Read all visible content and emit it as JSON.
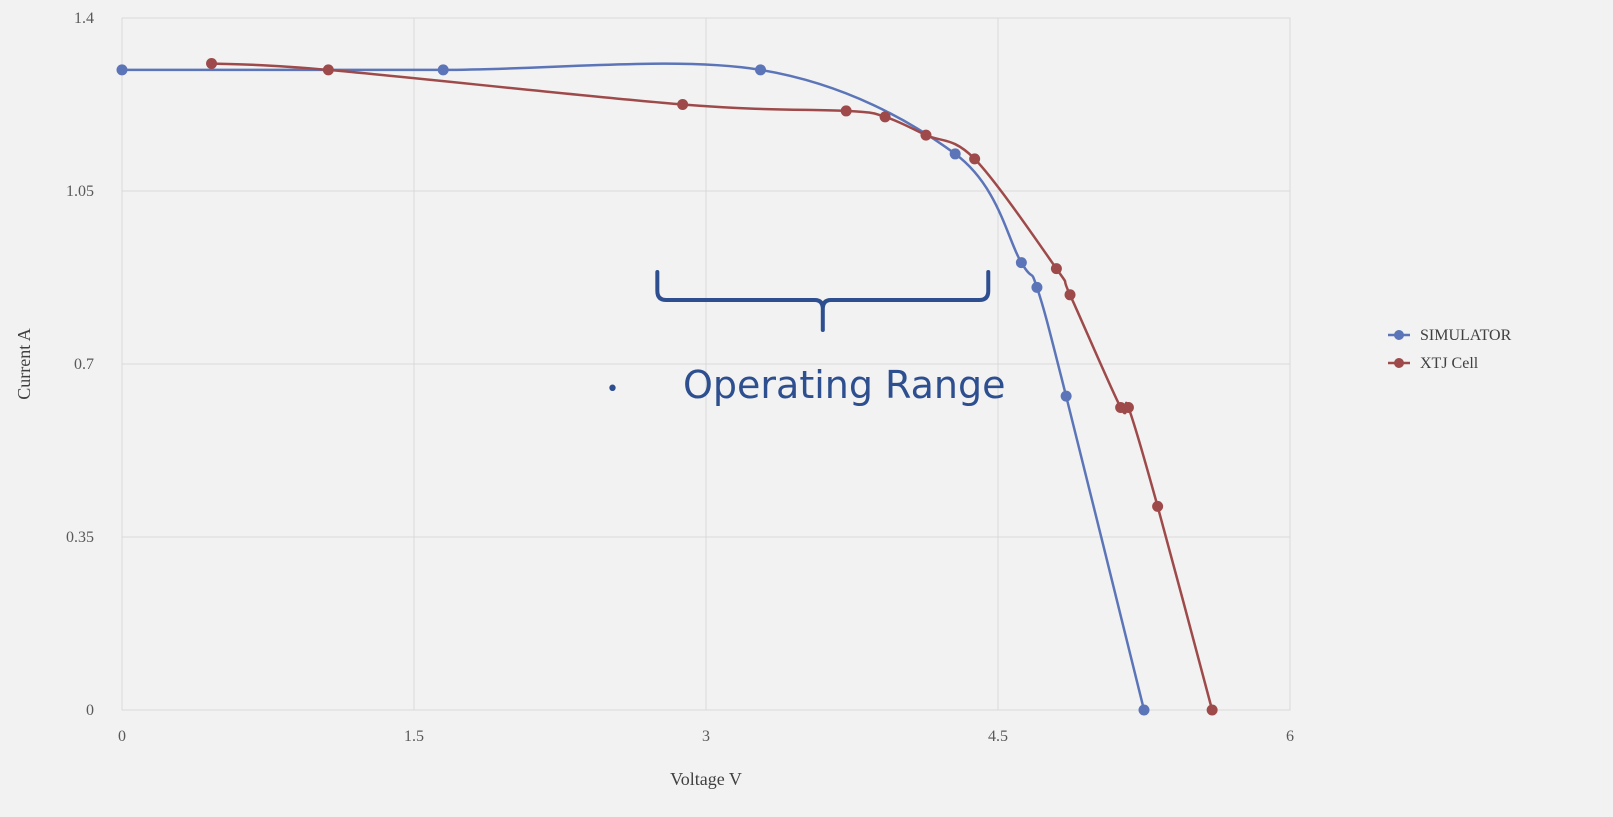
{
  "chart_data": {
    "type": "scatter",
    "xlabel": "Voltage V",
    "ylabel": "Current A",
    "xlim": [
      0,
      6
    ],
    "ylim": [
      0,
      1.4
    ],
    "x_ticks": [
      "0",
      "1.5",
      "3",
      "4.5",
      "6"
    ],
    "y_ticks": [
      "0",
      "0.35",
      "0.7",
      "1.05",
      "1.4"
    ],
    "grid": true,
    "legend_position": "right",
    "smoothed_lines": true,
    "series": [
      {
        "name": "SIMULATOR",
        "color": "#5b75b8",
        "points": [
          [
            0,
            1.295
          ],
          [
            1.65,
            1.295
          ],
          [
            3.28,
            1.295
          ],
          [
            4.28,
            1.125
          ],
          [
            4.62,
            0.905
          ],
          [
            4.7,
            0.855
          ],
          [
            4.85,
            0.635
          ],
          [
            5.25,
            0.0
          ]
        ]
      },
      {
        "name": "XTJ Cell",
        "color": "#9e4a4a",
        "points": [
          [
            0.46,
            1.308
          ],
          [
            1.06,
            1.295
          ],
          [
            2.88,
            1.225
          ],
          [
            3.72,
            1.212
          ],
          [
            3.92,
            1.2
          ],
          [
            4.13,
            1.163
          ],
          [
            4.38,
            1.115
          ],
          [
            4.8,
            0.893
          ],
          [
            4.87,
            0.84
          ],
          [
            5.13,
            0.612
          ],
          [
            5.17,
            0.612
          ],
          [
            5.32,
            0.412
          ],
          [
            5.6,
            0.0
          ]
        ]
      }
    ],
    "annotations": {
      "brace_range_x": [
        2.75,
        4.45
      ],
      "label": "Operating Range",
      "bullet": "•"
    }
  }
}
